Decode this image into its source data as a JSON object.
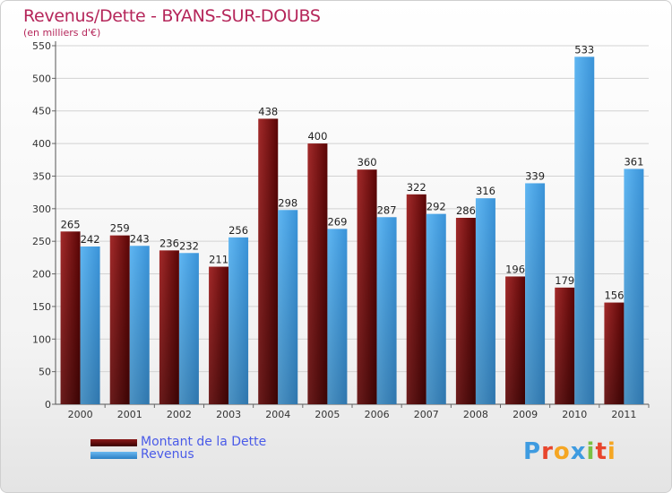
{
  "chart_data": {
    "type": "bar",
    "title": "Revenus/Dette - BYANS-SUR-DOUBS",
    "subtitle": "(en milliers d'€)",
    "categories": [
      "2000",
      "2001",
      "2002",
      "2003",
      "2004",
      "2005",
      "2006",
      "2007",
      "2008",
      "2009",
      "2010",
      "2011"
    ],
    "series": [
      {
        "name": "Montant de la Dette",
        "color": "#6b0a0a",
        "values": [
          265,
          259,
          236,
          211,
          438,
          400,
          360,
          322,
          286,
          196,
          179,
          156
        ]
      },
      {
        "name": "Revenus",
        "color": "#3f9be0",
        "values": [
          242,
          243,
          232,
          256,
          298,
          269,
          287,
          292,
          316,
          339,
          533,
          361
        ]
      }
    ],
    "yticks": [
      0,
      50,
      100,
      150,
      200,
      250,
      300,
      350,
      400,
      450,
      500,
      550
    ],
    "ylim": [
      0,
      550
    ],
    "grid": true,
    "legend": "bottom-left"
  },
  "branding": {
    "logo_letters": [
      "P",
      "r",
      "o",
      "x",
      "i",
      "t",
      "i"
    ],
    "logo_colors": [
      "#3e9be0",
      "#e8452c",
      "#f5a623",
      "#3e9be0",
      "#7ac143",
      "#e8452c",
      "#f5a623"
    ]
  }
}
